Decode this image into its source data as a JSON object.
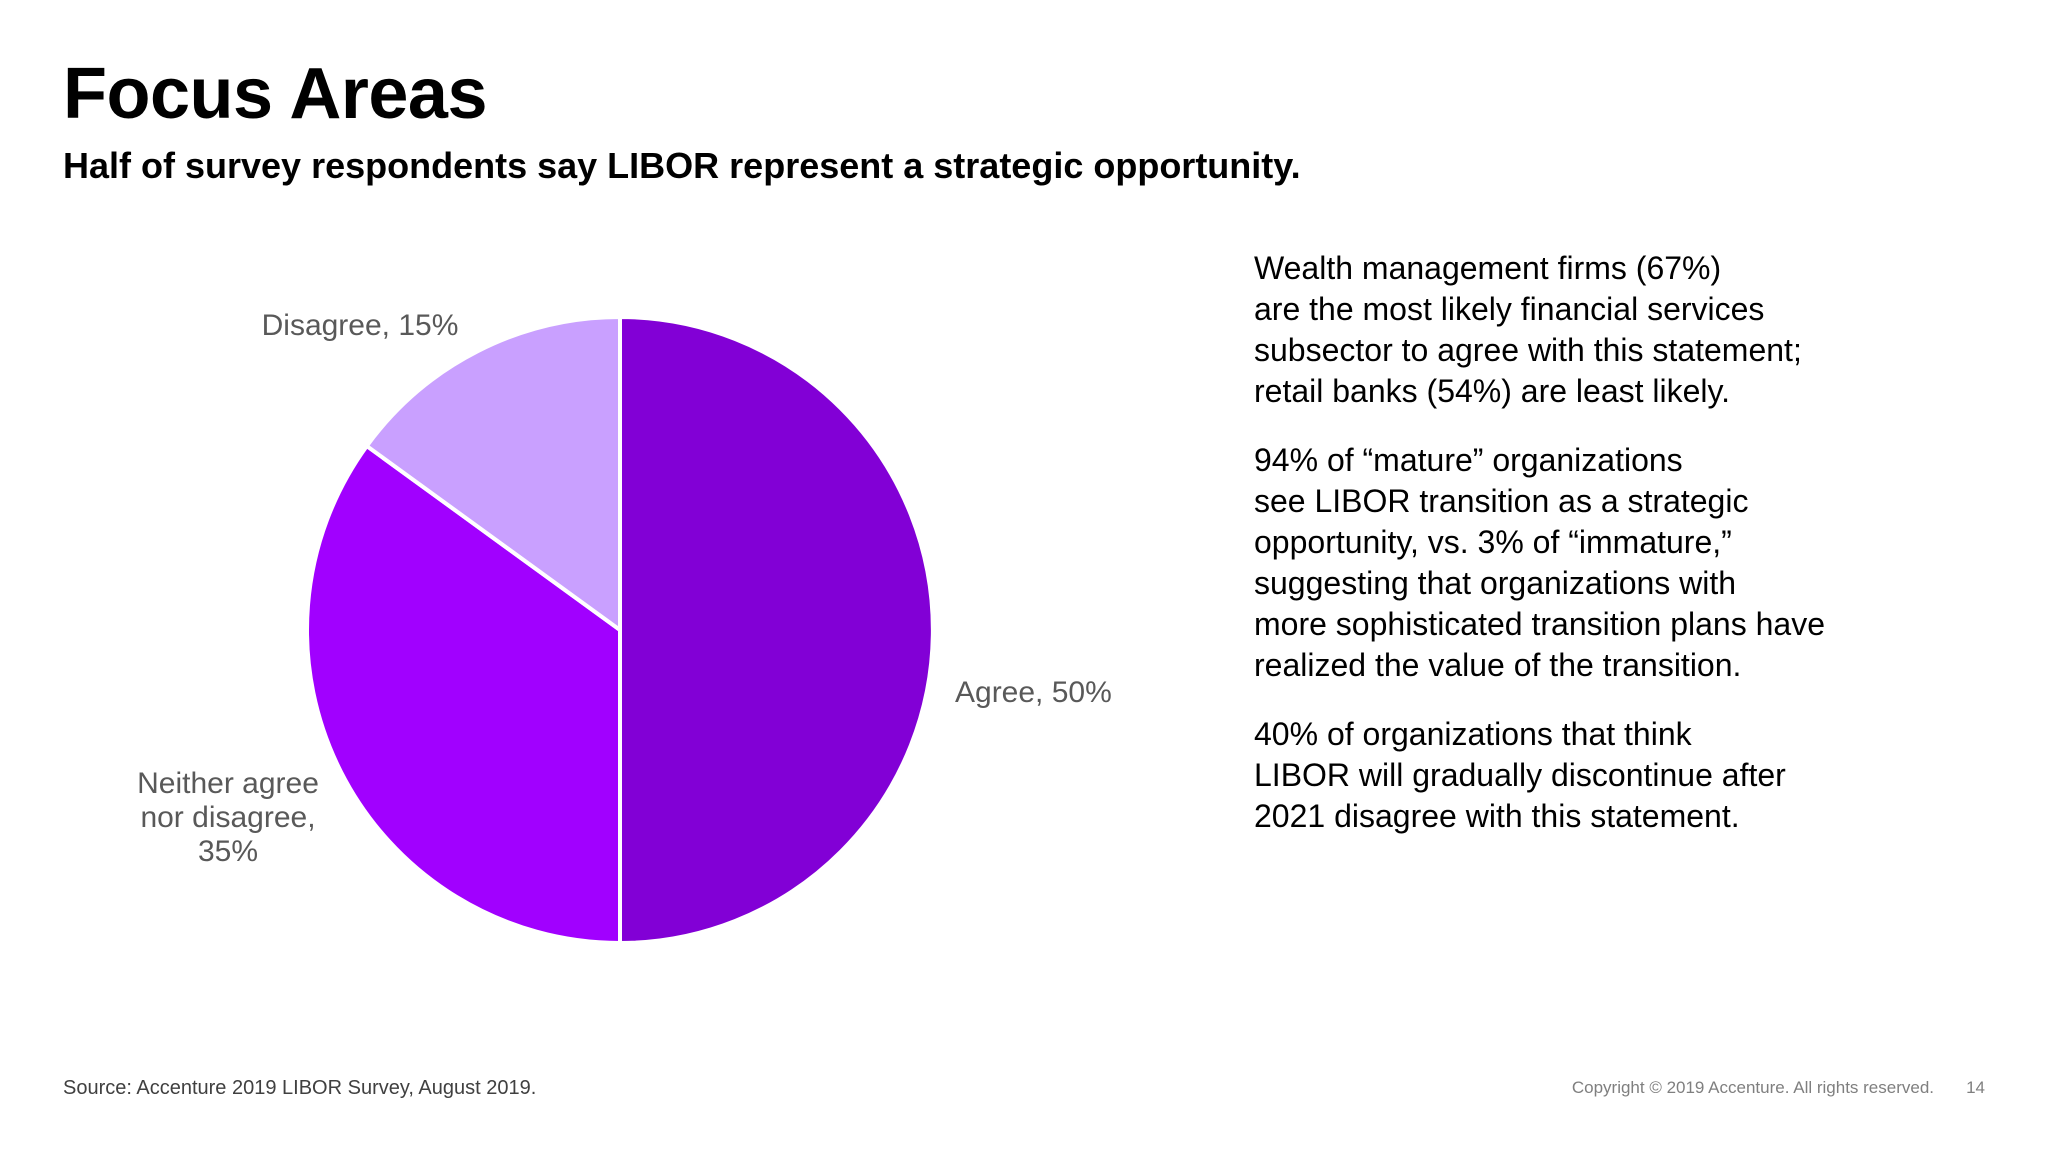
{
  "slide": {
    "title": "Focus Areas",
    "subtitle": "Half of survey respondents say LIBOR represent a strategic opportunity."
  },
  "chart_data": {
    "type": "pie",
    "title": "",
    "slices": [
      {
        "label": "Agree, 50%",
        "label_lines": [
          "Agree, 50%"
        ],
        "value": 50,
        "color": "#8200d6"
      },
      {
        "label": "Neither agree nor disagree, 35%",
        "label_lines": [
          "Neither agree",
          "nor disagree,",
          "35%"
        ],
        "value": 35,
        "color": "#a100ff"
      },
      {
        "label": "Disagree, 15%",
        "label_lines": [
          "Disagree, 15%"
        ],
        "value": 15,
        "color": "#c9a0ff"
      }
    ],
    "start": "12 o'clock",
    "direction": "clockwise",
    "legend": "none",
    "data_labels": "outside"
  },
  "notes": [
    {
      "lines": [
        "Wealth management  firms (67%)",
        "are the most likely financial services",
        "subsector to agree with this statement;",
        "retail banks (54%) are least likely."
      ]
    },
    {
      "lines": [
        "94% of “mature” organizations",
        "see LIBOR transition as a strategic",
        "opportunity, vs. 3% of “immature,”",
        "suggesting that organizations with",
        "more sophisticated transition plans have",
        "realized the value of the transition."
      ]
    },
    {
      "lines": [
        "40% of organizations  that think",
        "LIBOR will gradually  discontinue after",
        "2021 disagree with this statement."
      ]
    }
  ],
  "footer": {
    "source": "Source: Accenture 2019 LIBOR Survey,  August 2019.",
    "copyright": "Copyright © 2019 Accenture. All rights reserved.",
    "page_number": "14"
  }
}
